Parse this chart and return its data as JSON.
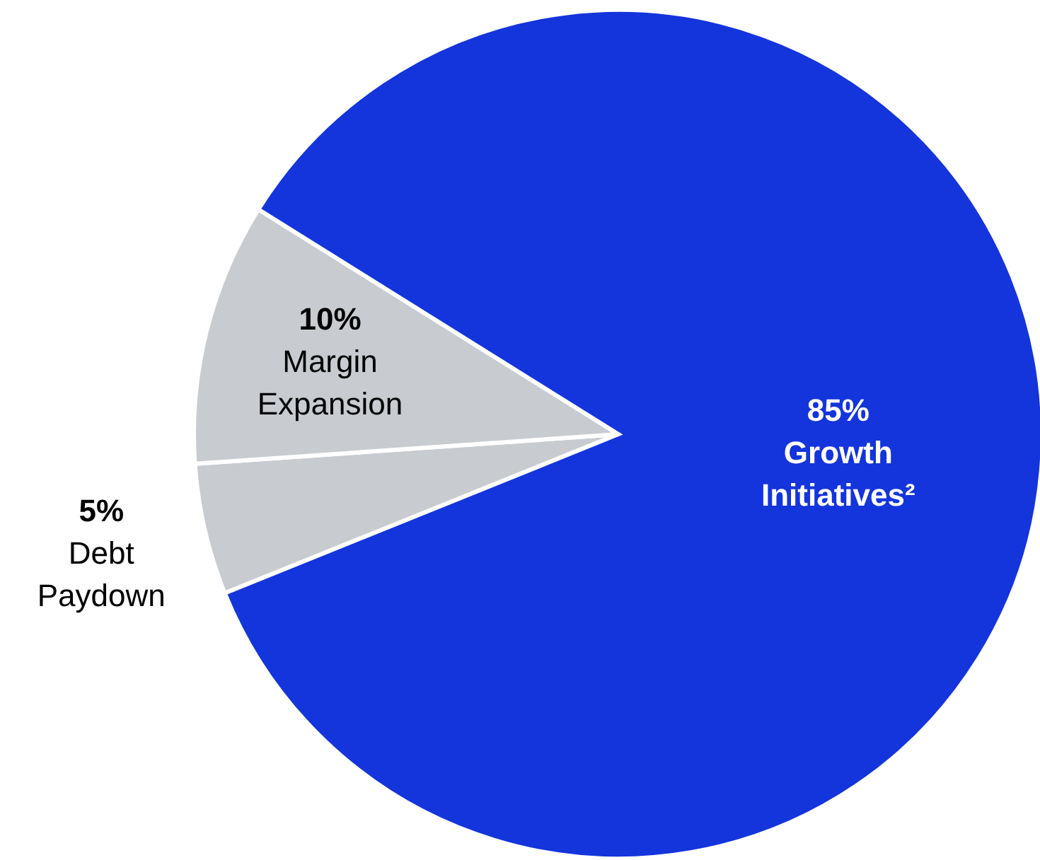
{
  "chart_data": {
    "type": "pie",
    "categories": [
      "Debt Paydown",
      "Margin Expansion",
      "Growth Initiatives²"
    ],
    "values": [
      5,
      10,
      85
    ],
    "colors": [
      "#c8cbd0",
      "#c8cbd0",
      "#1434dc"
    ],
    "value_labels": [
      "5%",
      "10%",
      "85%"
    ]
  }
}
